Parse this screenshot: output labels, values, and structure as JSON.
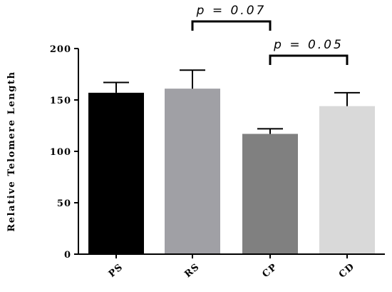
{
  "chart_data": {
    "type": "bar",
    "title": "",
    "xlabel": "",
    "ylabel": "Relative Telomere Length",
    "ylim": [
      0,
      200
    ],
    "yticks": [
      0,
      50,
      100,
      150,
      200
    ],
    "categories": [
      "PS",
      "RS",
      "CP",
      "CD"
    ],
    "values": [
      157,
      161,
      117,
      144
    ],
    "errors": [
      10,
      18,
      5,
      13
    ],
    "colors": [
      "#000000",
      "#a0a0a5",
      "#808080",
      "#d9d9d9"
    ],
    "grid": false,
    "legend": "none",
    "annotations": [
      {
        "text": "p = 0.07",
        "from": "RS",
        "to": "CP"
      },
      {
        "text": "p = 0.05",
        "from": "CP",
        "to": "CD"
      }
    ]
  }
}
